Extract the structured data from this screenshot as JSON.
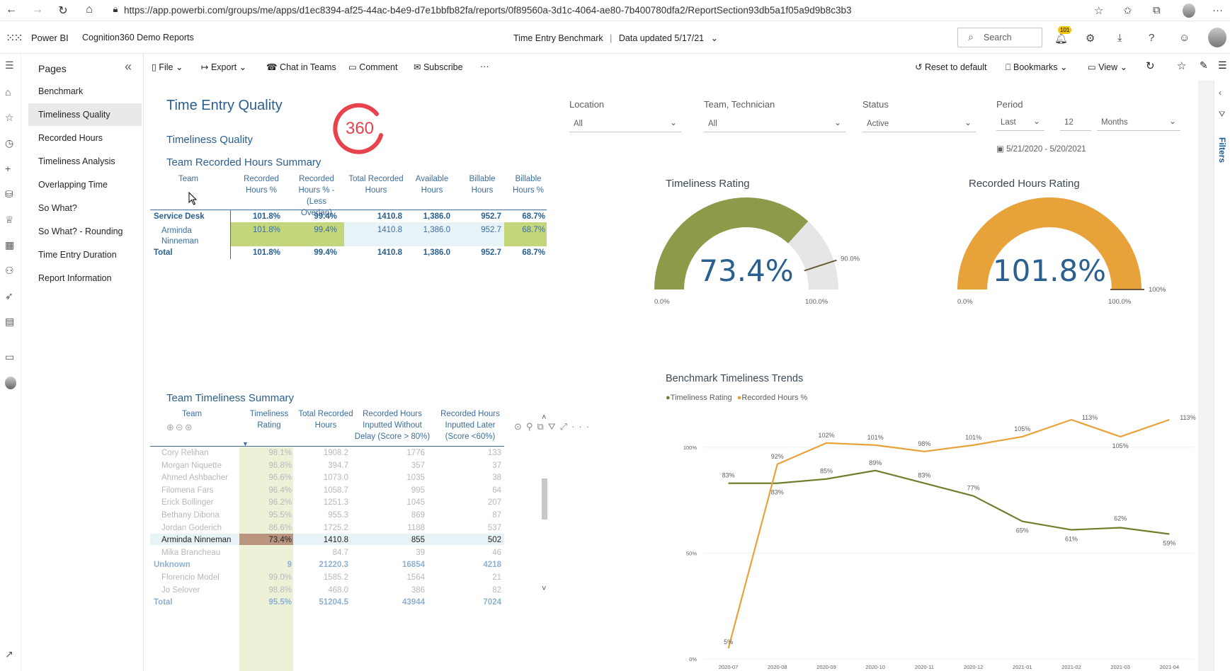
{
  "browser": {
    "url": "https://app.powerbi.com/groups/me/apps/d1ec8394-af25-44ac-b4e9-d7e1bbfb82fa/reports/0f89560a-3d1c-4064-ae80-7b400780dfa2/ReportSection93db5a1f05a9d9b8c3b3"
  },
  "header": {
    "brand": "Power BI",
    "workspace": "Cognition360 Demo Reports",
    "report_title": "Time Entry Benchmark",
    "separator": "|",
    "data_updated": "Data updated 5/17/21",
    "search_placeholder": "Search",
    "notification_count": "101"
  },
  "pages": {
    "title": "Pages",
    "items": [
      {
        "label": "Benchmark"
      },
      {
        "label": "Timeliness Quality"
      },
      {
        "label": "Recorded Hours"
      },
      {
        "label": "Timeliness Analysis"
      },
      {
        "label": "Overlapping Time"
      },
      {
        "label": "So What?"
      },
      {
        "label": "So What? - Rounding"
      },
      {
        "label": "Time Entry Duration"
      },
      {
        "label": "Report Information"
      }
    ],
    "active_index": 1
  },
  "toolbar": {
    "file": "File",
    "export": "Export",
    "chat": "Chat in Teams",
    "comment": "Comment",
    "subscribe": "Subscribe",
    "more": "···",
    "reset": "Reset to default",
    "bookmarks": "Bookmarks",
    "view": "View"
  },
  "report": {
    "title": "Time Entry Quality",
    "subtitle": "Timeliness Quality",
    "logo_text": "360",
    "filters_label": "Filters"
  },
  "slicers": {
    "location": {
      "label": "Location",
      "value": "All"
    },
    "team": {
      "label": "Team, Technician",
      "value": "All"
    },
    "status": {
      "label": "Status",
      "value": "Active"
    },
    "period": {
      "label": "Period",
      "relative": "Last",
      "count": "12",
      "unit": "Months",
      "range": "5/21/2020 - 5/20/2021"
    }
  },
  "hours_summary": {
    "title": "Team Recorded Hours Summary",
    "headers": [
      "Team",
      "Recorded Hours %",
      "Recorded Hours % - (Less Overlap)",
      "Total Recorded Hours",
      "Available Hours",
      "Billable Hours",
      "Billable Hours %"
    ],
    "rows": [
      {
        "team": "Service Desk",
        "values": [
          "101.8%",
          "99.4%",
          "1410.8",
          "1,386.0",
          "952.7",
          "68.7%"
        ],
        "type": "group"
      },
      {
        "team": "Arminda Ninneman",
        "values": [
          "101.8%",
          "99.4%",
          "1410.8",
          "1,386.0",
          "952.7",
          "68.7%"
        ],
        "type": "detail"
      },
      {
        "team": "Total",
        "values": [
          "101.8%",
          "99.4%",
          "1410.8",
          "1,386.0",
          "952.7",
          "68.7%"
        ],
        "type": "total"
      }
    ]
  },
  "timeliness_gauge": {
    "title": "Timeliness Rating",
    "value": 73.4,
    "value_label": "73.4%",
    "min_label": "0.0%",
    "max_label": "100.0%",
    "target": 90.0,
    "target_label": "90.0%",
    "fill_color": "#8c9a4a"
  },
  "hours_gauge": {
    "title": "Recorded Hours Rating",
    "value": 101.8,
    "value_label": "101.8%",
    "min_label": "0.0%",
    "max_label": "100.0%",
    "target": 100,
    "target_label": "100%",
    "fill_color": "#e8a23a"
  },
  "timeliness_summary": {
    "title": "Team Timeliness Summary",
    "headers": [
      "Team",
      "Timeliness Rating",
      "Total Recorded Hours",
      "Recorded Hours Inputted Without Delay (Score > 80%)",
      "Recorded Hours Inputted Later (Score <60%)"
    ],
    "rows": [
      {
        "team": "Cory Relihan",
        "values": [
          "98.1%",
          "1908.2",
          "1776",
          "133"
        ],
        "type": "muted"
      },
      {
        "team": "Morgan Niquette",
        "values": [
          "96.8%",
          "394.7",
          "357",
          "37"
        ],
        "type": "muted"
      },
      {
        "team": "Ahmed Ashbacher",
        "values": [
          "96.6%",
          "1073.0",
          "1035",
          "38"
        ],
        "type": "muted"
      },
      {
        "team": "Filomena Fars",
        "values": [
          "96.4%",
          "1058.7",
          "995",
          "64"
        ],
        "type": "muted"
      },
      {
        "team": "Erick Bollinger",
        "values": [
          "96.2%",
          "1251.3",
          "1045",
          "207"
        ],
        "type": "muted"
      },
      {
        "team": "Bethany Dibona",
        "values": [
          "95.5%",
          "955.3",
          "869",
          "87"
        ],
        "type": "muted"
      },
      {
        "team": "Jordan Goderich",
        "values": [
          "86.6%",
          "1725.2",
          "1188",
          "537"
        ],
        "type": "muted"
      },
      {
        "team": "Arminda Ninneman",
        "values": [
          "73.4%",
          "1410.8",
          "855",
          "502"
        ],
        "type": "selected"
      },
      {
        "team": "Mika Brancheau",
        "values": [
          "",
          "84.7",
          "39",
          "46"
        ],
        "type": "muted"
      },
      {
        "team": "Unknown",
        "values": [
          "9",
          "21220.3",
          "16854",
          "4218"
        ],
        "type": "group"
      },
      {
        "team": "Florencio Model",
        "values": [
          "99.0%",
          "1585.2",
          "1564",
          "21"
        ],
        "type": "muted"
      },
      {
        "team": "Jo Selover",
        "values": [
          "98.8%",
          "468.0",
          "386",
          "82"
        ],
        "type": "muted"
      },
      {
        "team": "Total",
        "values": [
          "95.5%",
          "51204.5",
          "43944",
          "7024"
        ],
        "type": "total"
      }
    ]
  },
  "trend_chart": {
    "title": "Benchmark  Timeliness Trends",
    "legend": [
      {
        "name": "Timeliness Rating",
        "color": "#6f7f2e"
      },
      {
        "name": "Recorded Hours %",
        "color": "#e8a23a"
      }
    ]
  },
  "chart_data": {
    "type": "line",
    "title": "Benchmark  Timeliness Trends",
    "x": [
      "2020-07",
      "2020-08",
      "2020-09",
      "2020-10",
      "2020-11",
      "2020-12",
      "2021-01",
      "2021-02",
      "2021-03",
      "2021-04"
    ],
    "y_ticks": [
      "0%",
      "50%",
      "100%"
    ],
    "ylim": [
      0,
      115
    ],
    "legend_position": "top-left",
    "series": [
      {
        "name": "Timeliness Rating",
        "color": "#6f7f2e",
        "values": [
          83,
          83,
          85,
          89,
          83,
          77,
          65,
          61,
          62,
          59
        ],
        "labels": [
          "83%",
          "83%",
          "85%",
          "89%",
          "83%",
          "77%",
          "65%",
          "61%",
          "62%",
          "59%"
        ]
      },
      {
        "name": "Recorded Hours %",
        "color": "#e8a23a",
        "values": [
          5,
          92,
          102,
          101,
          98,
          101,
          105,
          113,
          105,
          113
        ],
        "labels": [
          "5%",
          "92%",
          "102%",
          "101%",
          "98%",
          "101%",
          "105%",
          "113%",
          "105%",
          "113%"
        ]
      }
    ]
  }
}
